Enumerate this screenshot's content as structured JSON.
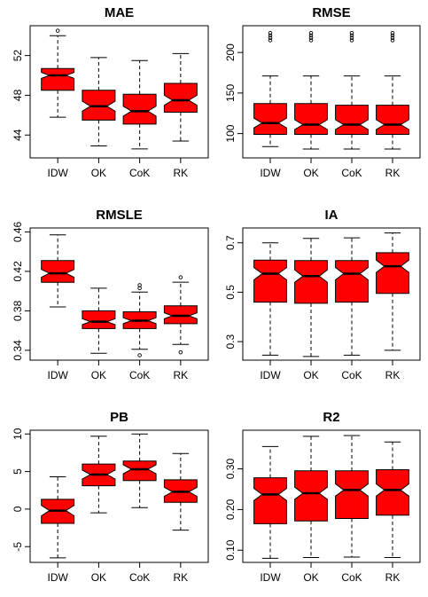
{
  "chart_data": [
    {
      "type": "boxplot",
      "title": "MAE",
      "categories": [
        "IDW",
        "OK",
        "CoK",
        "RK"
      ],
      "ylim": [
        41.7,
        55.0
      ],
      "yticks": [
        44,
        48,
        52
      ],
      "ytick_labels": [
        "44",
        "48",
        "52"
      ],
      "boxes": [
        {
          "min": 45.8,
          "q1": 48.5,
          "median": 50.0,
          "q3": 50.7,
          "max": 54.0,
          "notch_low": 49.7,
          "notch_high": 50.3,
          "outliers": [
            54.5
          ]
        },
        {
          "min": 42.9,
          "q1": 45.5,
          "median": 46.9,
          "q3": 48.5,
          "max": 51.8,
          "notch_low": 46.4,
          "notch_high": 47.4,
          "outliers": []
        },
        {
          "min": 42.6,
          "q1": 45.1,
          "median": 46.4,
          "q3": 48.1,
          "max": 51.5,
          "notch_low": 45.9,
          "notch_high": 46.9,
          "outliers": []
        },
        {
          "min": 43.4,
          "q1": 46.3,
          "median": 47.5,
          "q3": 49.2,
          "max": 52.2,
          "notch_low": 47.0,
          "notch_high": 48.0,
          "outliers": []
        }
      ]
    },
    {
      "type": "boxplot",
      "title": "RMSE",
      "categories": [
        "IDW",
        "OK",
        "CoK",
        "RK"
      ],
      "ylim": [
        70,
        233
      ],
      "yticks": [
        100,
        150,
        200
      ],
      "ytick_labels": [
        "100",
        "150",
        "200"
      ],
      "boxes": [
        {
          "min": 84,
          "q1": 99,
          "median": 113,
          "q3": 137,
          "max": 171,
          "notch_low": 107,
          "notch_high": 119,
          "outliers": [
            215,
            218,
            221,
            224
          ]
        },
        {
          "min": 81,
          "q1": 99,
          "median": 111,
          "q3": 137,
          "max": 171,
          "notch_low": 105,
          "notch_high": 117,
          "outliers": [
            215,
            218,
            221,
            224
          ]
        },
        {
          "min": 81,
          "q1": 99,
          "median": 111,
          "q3": 135,
          "max": 171,
          "notch_low": 105,
          "notch_high": 117,
          "outliers": [
            215,
            218,
            221,
            224
          ]
        },
        {
          "min": 81,
          "q1": 99,
          "median": 111,
          "q3": 135,
          "max": 171,
          "notch_low": 105,
          "notch_high": 117,
          "outliers": [
            215,
            218,
            221,
            224
          ]
        }
      ]
    },
    {
      "type": "boxplot",
      "title": "RMSLE",
      "categories": [
        "IDW",
        "OK",
        "CoK",
        "RK"
      ],
      "ylim": [
        0.33,
        0.464
      ],
      "yticks": [
        0.34,
        0.38,
        0.42,
        0.46
      ],
      "ytick_labels": [
        "0.34",
        "0.38",
        "0.42",
        "0.46"
      ],
      "boxes": [
        {
          "min": 0.384,
          "q1": 0.409,
          "median": 0.418,
          "q3": 0.431,
          "max": 0.457,
          "notch_low": 0.414,
          "notch_high": 0.422,
          "outliers": []
        },
        {
          "min": 0.337,
          "q1": 0.362,
          "median": 0.369,
          "q3": 0.38,
          "max": 0.403,
          "notch_low": 0.366,
          "notch_high": 0.372,
          "outliers": []
        },
        {
          "min": 0.341,
          "q1": 0.362,
          "median": 0.37,
          "q3": 0.379,
          "max": 0.399,
          "notch_low": 0.367,
          "notch_high": 0.373,
          "outliers": [
            0.335,
            0.403,
            0.406
          ]
        },
        {
          "min": 0.346,
          "q1": 0.367,
          "median": 0.375,
          "q3": 0.385,
          "max": 0.409,
          "notch_low": 0.372,
          "notch_high": 0.378,
          "outliers": [
            0.338,
            0.414
          ]
        }
      ]
    },
    {
      "type": "boxplot",
      "title": "IA",
      "categories": [
        "IDW",
        "OK",
        "CoK",
        "RK"
      ],
      "ylim": [
        0.225,
        0.76
      ],
      "yticks": [
        0.3,
        0.5,
        0.7
      ],
      "ytick_labels": [
        "0.3",
        "0.5",
        "0.7"
      ],
      "boxes": [
        {
          "min": 0.245,
          "q1": 0.46,
          "median": 0.575,
          "q3": 0.63,
          "max": 0.7,
          "notch_low": 0.55,
          "notch_high": 0.6,
          "outliers": []
        },
        {
          "min": 0.24,
          "q1": 0.455,
          "median": 0.565,
          "q3": 0.628,
          "max": 0.718,
          "notch_low": 0.54,
          "notch_high": 0.59,
          "outliers": []
        },
        {
          "min": 0.245,
          "q1": 0.46,
          "median": 0.575,
          "q3": 0.628,
          "max": 0.72,
          "notch_low": 0.55,
          "notch_high": 0.6,
          "outliers": []
        },
        {
          "min": 0.265,
          "q1": 0.495,
          "median": 0.605,
          "q3": 0.66,
          "max": 0.74,
          "notch_low": 0.58,
          "notch_high": 0.63,
          "outliers": []
        }
      ]
    },
    {
      "type": "boxplot",
      "title": "PB",
      "categories": [
        "IDW",
        "OK",
        "CoK",
        "RK"
      ],
      "ylim": [
        -7.1,
        10.5
      ],
      "yticks": [
        -5,
        0,
        5,
        10
      ],
      "ytick_labels": [
        "-5",
        "0",
        "5",
        "10"
      ],
      "boxes": [
        {
          "min": -6.5,
          "q1": -1.9,
          "median": -0.2,
          "q3": 1.3,
          "max": 4.3,
          "notch_low": -0.9,
          "notch_high": 0.5,
          "outliers": []
        },
        {
          "min": -0.5,
          "q1": 3.1,
          "median": 4.6,
          "q3": 6.0,
          "max": 9.7,
          "notch_low": 4.0,
          "notch_high": 5.2,
          "outliers": []
        },
        {
          "min": 0.2,
          "q1": 3.8,
          "median": 5.3,
          "q3": 6.4,
          "max": 10.0,
          "notch_low": 4.7,
          "notch_high": 5.9,
          "outliers": []
        },
        {
          "min": -2.8,
          "q1": 0.9,
          "median": 2.3,
          "q3": 3.9,
          "max": 7.4,
          "notch_low": 1.7,
          "notch_high": 2.9,
          "outliers": []
        }
      ]
    },
    {
      "type": "boxplot",
      "title": "R2",
      "categories": [
        "IDW",
        "OK",
        "CoK",
        "RK"
      ],
      "ylim": [
        0.07,
        0.395
      ],
      "yticks": [
        0.1,
        0.2,
        0.3
      ],
      "ytick_labels": [
        "0.10",
        "0.20",
        "0.30"
      ],
      "boxes": [
        {
          "min": 0.08,
          "q1": 0.165,
          "median": 0.237,
          "q3": 0.278,
          "max": 0.355,
          "notch_low": 0.222,
          "notch_high": 0.252,
          "outliers": []
        },
        {
          "min": 0.082,
          "q1": 0.172,
          "median": 0.24,
          "q3": 0.295,
          "max": 0.38,
          "notch_low": 0.225,
          "notch_high": 0.255,
          "outliers": []
        },
        {
          "min": 0.083,
          "q1": 0.178,
          "median": 0.248,
          "q3": 0.295,
          "max": 0.382,
          "notch_low": 0.233,
          "notch_high": 0.263,
          "outliers": []
        },
        {
          "min": 0.082,
          "q1": 0.186,
          "median": 0.248,
          "q3": 0.298,
          "max": 0.366,
          "notch_low": 0.233,
          "notch_high": 0.263,
          "outliers": []
        }
      ]
    }
  ],
  "colors": {
    "box_fill": "#ff0000",
    "line": "#000000"
  }
}
